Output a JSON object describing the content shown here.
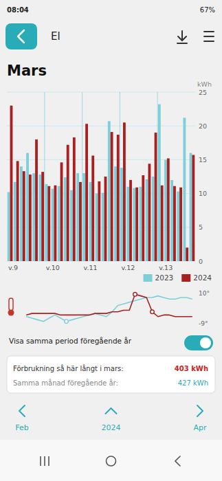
{
  "chart_data": [
    {
      "type": "bar",
      "title": "Mars",
      "ylabel": "kWh",
      "categories": [
        "v.9",
        null,
        null,
        null,
        null,
        null,
        "v.10",
        null,
        null,
        null,
        null,
        null,
        "v.11",
        null,
        null,
        null,
        null,
        null,
        "v.12",
        null,
        null,
        null,
        null,
        null,
        "v.13",
        null,
        null,
        null,
        null,
        null
      ],
      "series": [
        {
          "name": "2023",
          "color": "#7DCFDA",
          "values": [
            10.2,
            11.7,
            14.0,
            16.0,
            13.0,
            12.8,
            11.4,
            10.7,
            11.1,
            12.4,
            10.5,
            13.0,
            13.0,
            11.7,
            10.0,
            10.1,
            20.7,
            14.0,
            13.8,
            11.0,
            10.8,
            11.0,
            12.1,
            12.5,
            23.2,
            15.0,
            12.0,
            10.3,
            21.2,
            16.0
          ]
        },
        {
          "name": "2024",
          "color": "#A82020",
          "values": [
            23.0,
            14.8,
            13.3,
            12.8,
            18.0,
            13.2,
            11.1,
            11.2,
            14.6,
            17.2,
            18.3,
            11.7,
            20.3,
            15.6,
            11.8,
            12.5,
            19.1,
            18.7,
            20.5,
            12.0,
            10.9,
            12.7,
            14.4,
            19.0,
            11.2,
            15.2,
            11.1,
            10.9,
            2.0,
            15.7
          ]
        }
      ],
      "ylim": [
        0,
        25
      ],
      "yticks": [
        0,
        5,
        10,
        15,
        20,
        25
      ],
      "grid": true,
      "legend": "lower right",
      "annotations": [
        "08:04",
        "67%",
        "El",
        "Visa samma period föregående år",
        "Förbrukning så här långt i mars: ",
        "403 kWh",
        "Samma månad föregående år: ",
        "427 kWh",
        "Feb",
        "2024",
        "Apr"
      ]
    },
    {
      "type": "line",
      "categories": [
        null,
        null,
        null,
        null,
        null,
        null,
        null,
        null,
        null,
        null,
        null,
        null,
        null,
        null,
        null,
        null,
        null,
        null,
        null,
        null,
        null,
        null,
        null,
        null,
        null,
        null,
        null,
        null,
        null,
        null
      ],
      "series": [
        {
          "name": "2023",
          "color": "#7DCFDA",
          "values": [
            -5,
            -6,
            -7,
            -8,
            -6,
            -4,
            -6,
            -8,
            -7,
            -6,
            -5,
            -4,
            -3,
            -4,
            -5,
            -2,
            2,
            3,
            4,
            5,
            6,
            7,
            7,
            8,
            7,
            6,
            6,
            7,
            7,
            6
          ],
          "marked_indices": [
            7
          ]
        },
        {
          "name": "2024",
          "color": "#A82020",
          "values": [
            -4,
            -3,
            -3,
            -3,
            -3,
            -3,
            -4,
            -4,
            -4,
            -4,
            -4,
            -4,
            -3,
            -3,
            -3,
            -2,
            -2,
            -1,
            -1,
            9,
            8,
            7,
            -2,
            -5,
            -4,
            -4,
            -5,
            -5,
            -5,
            -5
          ],
          "marked_indices": [
            19,
            22
          ]
        }
      ],
      "ylim": [
        -9,
        10
      ],
      "yticks": [
        {
          "value": -9,
          "label": "-9°"
        },
        {
          "value": 10,
          "label": "10°"
        }
      ],
      "grid": false,
      "tick_labels": "y"
    }
  ]
}
